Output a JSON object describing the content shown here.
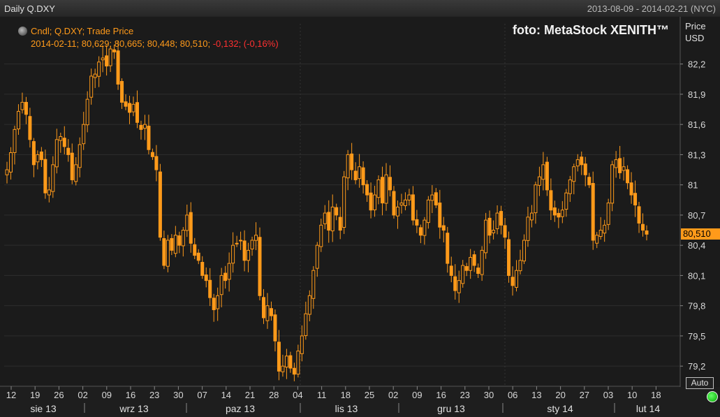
{
  "window": {
    "title": "Daily Q.DXY",
    "date_range": "2013-08-09 - 2014-02-21 (NYC)"
  },
  "legend": {
    "line1": "Cndl; Q.DXY; Trade Price",
    "ohlc": "2014-02-11; 80,629; 80,665; 80,448; 80,510;",
    "change": "-0,132; (-0,16%)"
  },
  "watermark": "foto: MetaStock XENITH™",
  "price_axis": {
    "title": "Price",
    "unit": "USD",
    "last_price": "80,510"
  },
  "controls": {
    "auto_label": "Auto"
  },
  "colors": {
    "candle": "#ff9a1a",
    "background": "#1b1b1b",
    "grid": "#2e2e2e",
    "change_negative": "#ff3030"
  },
  "chart_data": {
    "type": "candlestick",
    "ylim": [
      79.0,
      82.6
    ],
    "yticks": [
      "82,2",
      "81,9",
      "81,6",
      "81,3",
      "81",
      "80,7",
      "80,4",
      "80,1",
      "79,8",
      "79,5",
      "79,2"
    ],
    "ytick_values": [
      82.2,
      81.9,
      81.6,
      81.3,
      81.0,
      80.7,
      80.4,
      80.1,
      79.8,
      79.5,
      79.2
    ],
    "day_labels": [
      "12",
      "19",
      "26",
      "02",
      "09",
      "16",
      "23",
      "30",
      "07",
      "14",
      "21",
      "28",
      "04",
      "11",
      "18",
      "25",
      "02",
      "09",
      "16",
      "23",
      "30",
      "06",
      "13",
      "20",
      "27",
      "03",
      "10",
      "18"
    ],
    "months": [
      "sie 13",
      "wrz 13",
      "paz 13",
      "lis 13",
      "gru 13",
      "sty 14",
      "lut 14"
    ],
    "closes": [
      81.15,
      81.32,
      81.55,
      81.73,
      81.82,
      81.7,
      81.45,
      81.2,
      81.3,
      81.25,
      80.92,
      80.95,
      81.2,
      81.45,
      81.48,
      81.38,
      81.3,
      81.05,
      81.2,
      81.4,
      81.6,
      81.85,
      82.08,
      82.1,
      82.22,
      82.26,
      82.18,
      82.35,
      82.32,
      82.0,
      81.82,
      81.78,
      81.72,
      81.8,
      81.62,
      81.55,
      81.6,
      81.35,
      81.28,
      81.15,
      80.48,
      80.2,
      80.45,
      80.35,
      80.5,
      80.4,
      80.55,
      80.7,
      80.42,
      80.3,
      80.25,
      80.1,
      80.05,
      79.88,
      79.76,
      79.9,
      80.1,
      80.05,
      80.22,
      80.4,
      80.42,
      80.45,
      80.25,
      80.35,
      80.45,
      80.5,
      79.9,
      79.68,
      79.8,
      79.7,
      79.45,
      79.15,
      79.2,
      79.3,
      79.18,
      79.12,
      79.35,
      79.5,
      79.72,
      79.9,
      80.15,
      80.4,
      80.6,
      80.72,
      80.55,
      80.78,
      80.7,
      80.55,
      81.08,
      81.3,
      81.15,
      81.05,
      81.18,
      81.0,
      80.9,
      80.75,
      80.9,
      81.05,
      80.82,
      81.1,
      80.95,
      80.7,
      80.78,
      80.82,
      80.85,
      80.9,
      80.65,
      80.6,
      80.5,
      80.65,
      80.85,
      80.9,
      80.8,
      80.58,
      80.55,
      80.22,
      80.1,
      79.95,
      80.05,
      80.2,
      80.15,
      80.28,
      80.2,
      80.12,
      80.35,
      80.65,
      80.5,
      80.55,
      80.72,
      80.6,
      80.48,
      80.1,
      80.0,
      80.15,
      80.25,
      80.45,
      80.68,
      80.72,
      81.0,
      81.08,
      81.2,
      80.95,
      80.75,
      80.7,
      80.68,
      80.75,
      80.92,
      81.05,
      81.18,
      81.25,
      81.2,
      81.1,
      81.0,
      80.45,
      80.5,
      80.55,
      80.6,
      80.82,
      81.2,
      81.25,
      81.12,
      81.18,
      81.02,
      80.9,
      80.8,
      80.62,
      80.55,
      80.51
    ]
  }
}
